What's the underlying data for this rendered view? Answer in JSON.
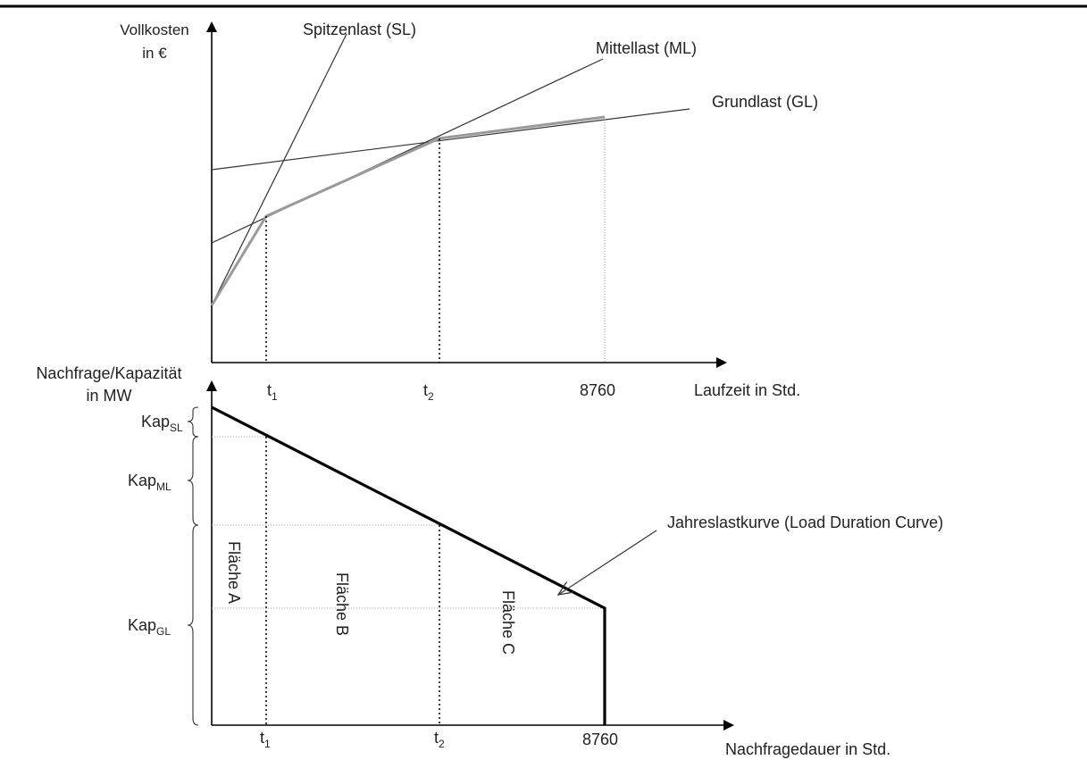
{
  "top_chart": {
    "y_axis_label_line1": "Vollkosten",
    "y_axis_label_line2": "in €",
    "x_axis_label": "Laufzeit in Std.",
    "line_labels": {
      "sl": "Spitzenlast (SL)",
      "ml": "Mittellast (ML)",
      "gl": "Grundlast (GL)"
    },
    "ticks": {
      "t1_main": "t",
      "t1_sub": "1",
      "t2_main": "t",
      "t2_sub": "2",
      "end": "8760"
    }
  },
  "bottom_chart": {
    "y_axis_label_line1": "Nachfrage/Kapazität",
    "y_axis_label_line2": "in MW",
    "x_axis_label": "Nachfragedauer in Std.",
    "capacity_labels": {
      "sl_main": "Kap",
      "sl_sub": "SL",
      "ml_main": "Kap",
      "ml_sub": "ML",
      "gl_main": "Kap",
      "gl_sub": "GL"
    },
    "areas": {
      "a": "Fläche A",
      "b": "Fläche B",
      "c": "Fläche C"
    },
    "curve_label": "Jahreslastkurve (Load Duration Curve)",
    "ticks": {
      "t1_main": "t",
      "t1_sub": "1",
      "t2_main": "t",
      "t2_sub": "2",
      "end": "8760"
    }
  },
  "colors": {
    "axis": "#000000",
    "cost_lines": "#333333",
    "envelope": "#9a9a9a",
    "load_curve": "#000000",
    "guides": "#999999"
  }
}
